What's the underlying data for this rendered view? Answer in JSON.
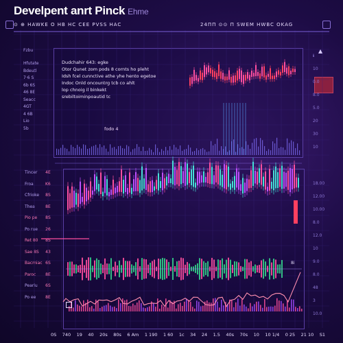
{
  "title": "Develpent anrt Pinck",
  "title_sub": "Ehme",
  "topbar": {
    "left": "⊙  ⊕  HAWKE   O  HB HC  CEE   PVSS HAC",
    "right": "24ΠΠ  ⊙⊙  Π SWEM   HWBC   OKAG"
  },
  "left_axis": [
    "Fzbu",
    "Hfutate",
    "Bdeutl",
    "7·6 S",
    "6b 6S",
    "46 8E",
    "Seacc",
    "4GT",
    "4 6B",
    "Lio",
    "5b"
  ],
  "left_axis2": [
    "Tincer",
    "Froa",
    "Cfrioke",
    "Thea",
    "Pio pe",
    "Po rue",
    "Ret 80",
    "Sae 8S",
    "Bacmiac",
    "Paroc",
    "Pearlu",
    "Po ee"
  ],
  "left_axis2_values": [
    "4E",
    "K6",
    "8S",
    "8E",
    "8S",
    "26",
    "8S",
    "43",
    "6S",
    "8E",
    "6S",
    "8E"
  ],
  "right_axis_top": [
    "ℹ",
    "10",
    "0.0",
    "8.0",
    "5.0",
    "20",
    "30",
    "10"
  ],
  "right_axis_bottom": [
    "18.00",
    "12.00",
    "10.00",
    "8.0",
    "12.0",
    "10",
    "9.0",
    "8.0",
    "48",
    "3",
    "10.0"
  ],
  "infobox": [
    "Dudchahir 643: egke",
    "Otor Qunet zom pods 8 cornts ho pleht",
    "Idsh fcel cunnctive athe yhe hento egetoe",
    "Indoc Onld oncountrg tcb co ahlt",
    "lop chnoig il binkekt",
    "srebiltoiminpoautid tc"
  ],
  "tag": "fodo 4",
  "mini_tag": "8i",
  "bottom_axis": [
    "0S",
    "740",
    "19",
    "40",
    "20s",
    "80s",
    "6 Am",
    "1  190",
    "1  60",
    "1c",
    "34",
    "24",
    "1.5",
    "40s",
    "70s",
    "10",
    "10  1/4",
    "0  25",
    "21  10",
    "S1"
  ],
  "colors": {
    "bg": "#1d0c45",
    "pink": "#ff4fa0",
    "cyan": "#46e0d8",
    "green": "#34d08a",
    "red": "#ff4060",
    "purple_line": "#6b4fd0"
  },
  "icons": [
    "corner-button-icon",
    "square-icon",
    "arrow-up-icon"
  ]
}
